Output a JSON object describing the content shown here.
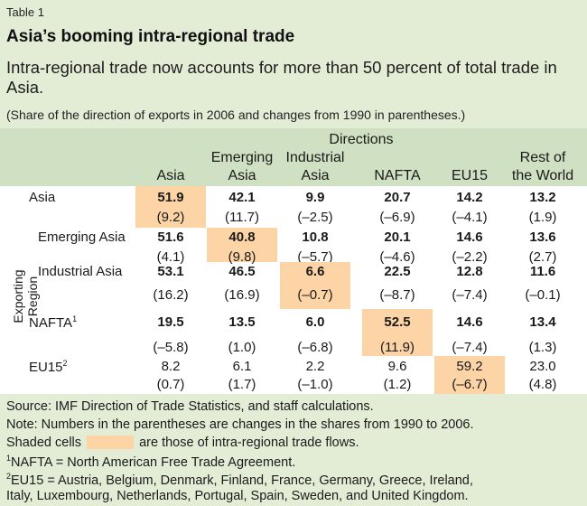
{
  "header": {
    "label": "Table 1",
    "title": "Asia’s booming intra-regional trade",
    "subtitle": "Intra-regional trade now accounts for more than 50 percent of total trade in Asia.",
    "note": "(Share of the direction of exports in 2006 and changes from 1990 in parentheses.)"
  },
  "table": {
    "directions_label": "Directions",
    "side_label": "Exporting Region",
    "columns": [
      {
        "l1": "",
        "l2": "Asia"
      },
      {
        "l1": "Emerging",
        "l2": "Asia"
      },
      {
        "l1": "Industrial",
        "l2": "Asia"
      },
      {
        "l1": "",
        "l2": "NAFTA"
      },
      {
        "l1": "",
        "l2": "EU15"
      },
      {
        "l1": "Rest of",
        "l2": "the World"
      }
    ],
    "rows": [
      {
        "label": "Asia",
        "sup": "",
        "values": [
          "51.9",
          "42.1",
          "9.9",
          "20.7",
          "14.2",
          "13.2"
        ],
        "changes": [
          "(9.2)",
          "(11.7)",
          "(–2.5)",
          "(–6.9)",
          "(–4.1)",
          "(1.9)"
        ]
      },
      {
        "label": "Emerging Asia",
        "sup": "",
        "values": [
          "51.6",
          "40.8",
          "10.8",
          "20.1",
          "14.6",
          "13.6"
        ],
        "changes": [
          "(4.1)",
          "(9.8)",
          "(–5.7)",
          "(–4.6)",
          "(–2.2)",
          "(2.7)"
        ]
      },
      {
        "label": "Industrial Asia",
        "sup": "",
        "values": [
          "53.1",
          "46.5",
          "6.6",
          "22.5",
          "12.8",
          "11.6"
        ],
        "changes": [
          "(16.2)",
          "(16.9)",
          "(–0.7)",
          "(–8.7)",
          "(–7.4)",
          "(–0.1)"
        ]
      },
      {
        "label": "NAFTA",
        "sup": "1",
        "values": [
          "19.5",
          "13.5",
          "6.0",
          "52.5",
          "14.6",
          "13.4"
        ],
        "changes": [
          "(–5.8)",
          "(1.0)",
          "(–6.8)",
          "(11.9)",
          "(–7.4)",
          "(1.3)"
        ]
      },
      {
        "label": "EU15",
        "sup": "2",
        "values": [
          "8.2",
          "6.1",
          "2.2",
          "9.6",
          "59.2",
          "23.0"
        ],
        "changes": [
          "(0.7)",
          "(1.7)",
          "(–1.0)",
          "(1.2)",
          "(–6.7)",
          "(4.8)"
        ]
      }
    ]
  },
  "footer": {
    "source": "Source: IMF Direction of Trade Statistics, and staff calculations.",
    "note": "Note: Numbers in the parentheses are changes in the shares from 1990 to 2006.",
    "shaded_a": "Shaded cells",
    "shaded_b": "are those of intra-regional trade flows.",
    "fn1_sup": "1",
    "fn1": "NAFTA = North American Free Trade Agreement.",
    "fn2_sup": "2",
    "fn2a": "EU15 = Austria, Belgium, Denmark, Finland, France, Germany, Greece, Ireland,",
    "fn2b": "Italy, Luxembourg, Netherlands, Portugal, Spain, Sweden, and United Kingdom."
  },
  "colors": {
    "header_band": "#cfe0c3",
    "background": "#e3edd6",
    "shade": "#fcd4a6"
  }
}
